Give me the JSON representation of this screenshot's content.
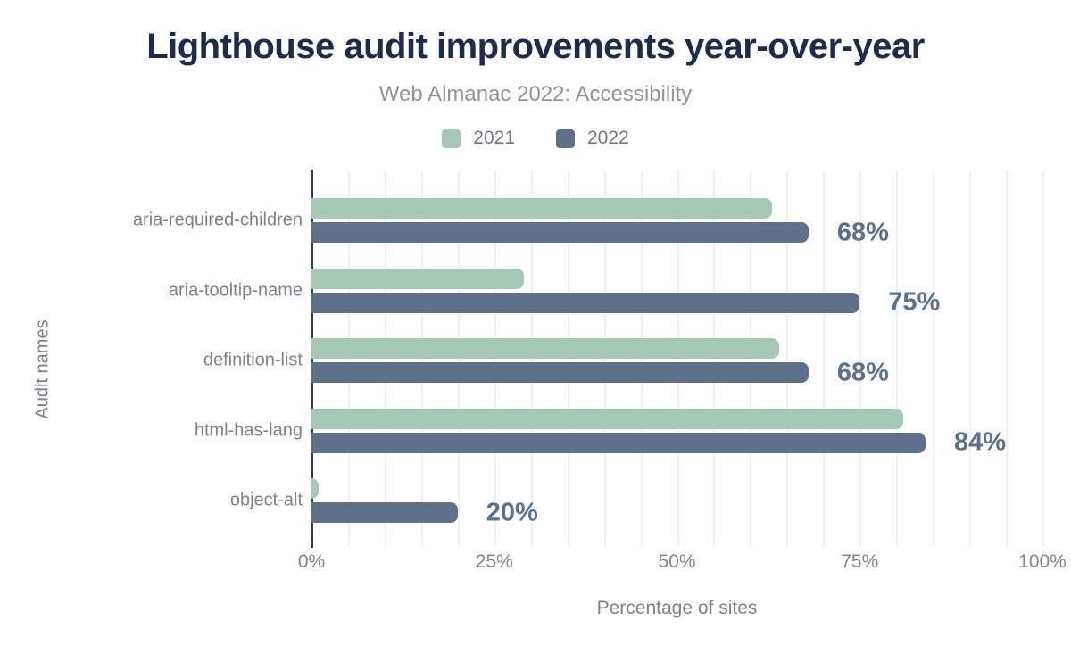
{
  "chart_data": {
    "type": "bar",
    "orientation": "horizontal",
    "title": "Lighthouse audit improvements year-over-year",
    "subtitle": "Web Almanac 2022: Accessibility",
    "xlabel": "Percentage of sites",
    "ylabel": "Audit names",
    "categories": [
      "aria-required-children",
      "aria-tooltip-name",
      "definition-list",
      "html-has-lang",
      "object-alt"
    ],
    "series": [
      {
        "name": "2021",
        "color": "#a6c9b6",
        "values": [
          63,
          29,
          64,
          81,
          1
        ]
      },
      {
        "name": "2022",
        "color": "#5f718a",
        "values": [
          68,
          75,
          68,
          84,
          20
        ]
      }
    ],
    "value_labels": [
      "68%",
      "75%",
      "68%",
      "84%",
      "20%"
    ],
    "x_ticks": [
      "0%",
      "25%",
      "50%",
      "75%",
      "100%"
    ],
    "x_tick_values": [
      0,
      25,
      50,
      75,
      100
    ],
    "xlim": [
      0,
      100
    ],
    "grid_step": 5,
    "grid": true,
    "legend_position": "top",
    "colors": {
      "title": "#1d2b4f",
      "subtitle": "#8e949d",
      "axis_text": "#7b828c",
      "tick_text": "#83878d",
      "category_text": "#7d838c",
      "value_label": "#5a7190",
      "axis_line": "#333d47",
      "gridline": "#f0f0f3",
      "background": "#ffffff"
    }
  }
}
